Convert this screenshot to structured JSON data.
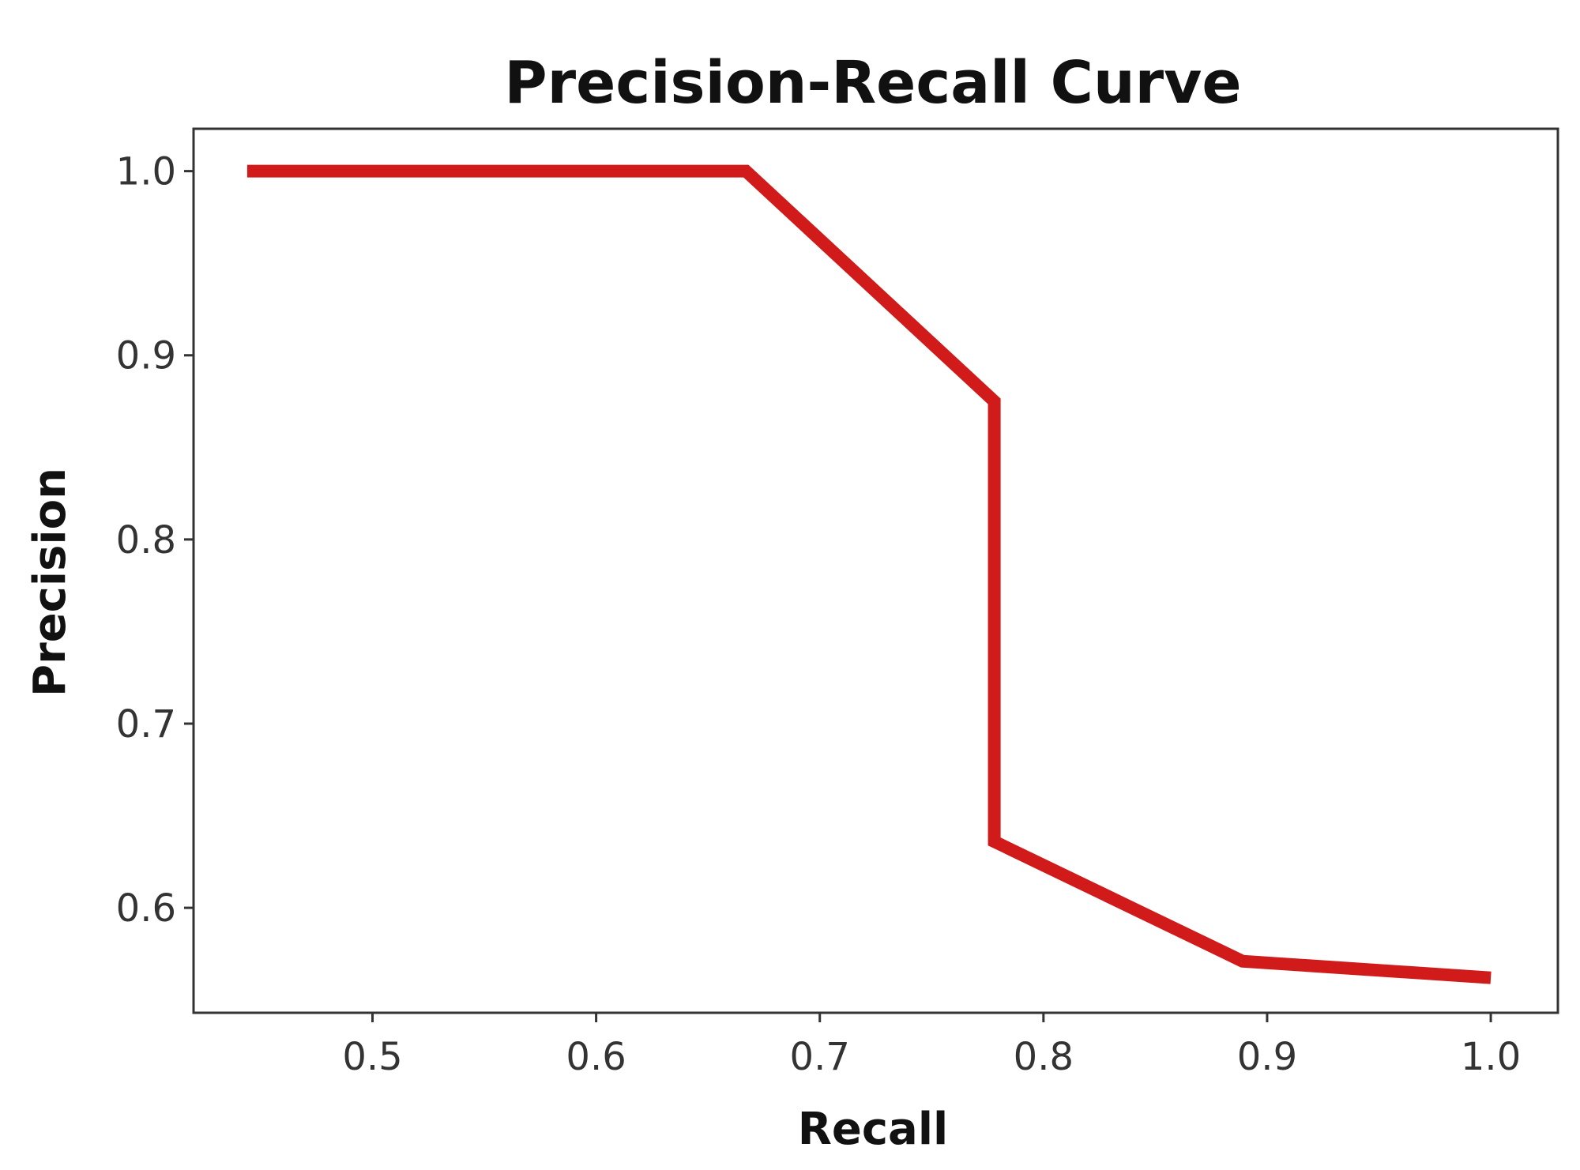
{
  "chart_data": {
    "type": "line",
    "title": "Precision-Recall Curve",
    "xlabel": "Recall",
    "ylabel": "Precision",
    "xlim": [
      0.42,
      1.03
    ],
    "ylim": [
      0.543,
      1.023
    ],
    "xticks": [
      0.5,
      0.6,
      0.7,
      0.8,
      0.9,
      1.0
    ],
    "xtick_labels": [
      "0.5",
      "0.6",
      "0.7",
      "0.8",
      "0.9",
      "1.0"
    ],
    "yticks": [
      0.6,
      0.7,
      0.8,
      0.9,
      1.0
    ],
    "ytick_labels": [
      "0.6",
      "0.7",
      "0.8",
      "0.9",
      "1.0"
    ],
    "grid": false,
    "series": [
      {
        "color": "#d11a1a",
        "x": [
          0.444,
          0.667,
          0.778,
          0.778,
          0.889,
          1.0
        ],
        "y": [
          1.0,
          1.0,
          0.875,
          0.636,
          0.571,
          0.562
        ]
      }
    ]
  }
}
